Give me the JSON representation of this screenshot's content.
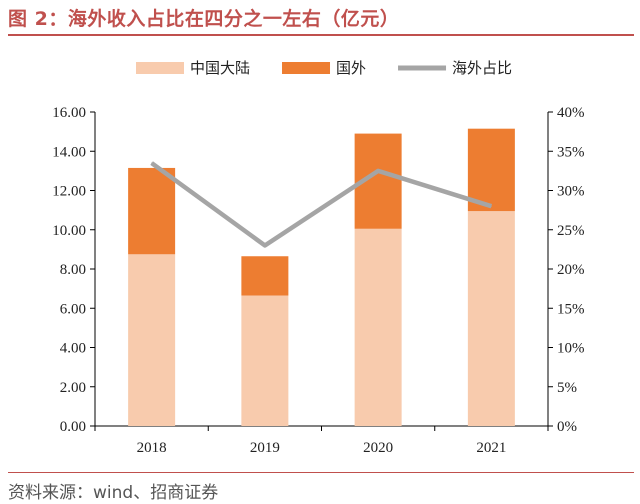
{
  "title": "图 2：海外收入占比在四分之一左右（亿元）",
  "source": "资料来源：wind、招商证券",
  "chart_data": {
    "type": "bar",
    "stacked": true,
    "categories": [
      "2018",
      "2019",
      "2020",
      "2021"
    ],
    "series": [
      {
        "name": "中国大陆",
        "kind": "bar",
        "axis": "left",
        "color": "#f8cbad",
        "values": [
          8.75,
          6.65,
          10.05,
          10.95
        ]
      },
      {
        "name": "国外",
        "kind": "bar",
        "axis": "left",
        "color": "#ed7d31",
        "values": [
          4.4,
          2.0,
          4.85,
          4.2
        ]
      },
      {
        "name": "海外占比",
        "kind": "line",
        "axis": "right",
        "color": "#a5a5a5",
        "values": [
          33.5,
          23.0,
          32.5,
          28.0
        ]
      }
    ],
    "y_left": {
      "min": 0,
      "max": 16,
      "step": 2,
      "tick_labels": [
        "0.00",
        "2.00",
        "4.00",
        "6.00",
        "8.00",
        "10.00",
        "12.00",
        "14.00",
        "16.00"
      ]
    },
    "y_right": {
      "min": 0,
      "max": 40,
      "step": 5,
      "tick_labels": [
        "0%",
        "5%",
        "10%",
        "15%",
        "20%",
        "25%",
        "30%",
        "35%",
        "40%"
      ]
    },
    "grid": false,
    "legend": "top"
  }
}
